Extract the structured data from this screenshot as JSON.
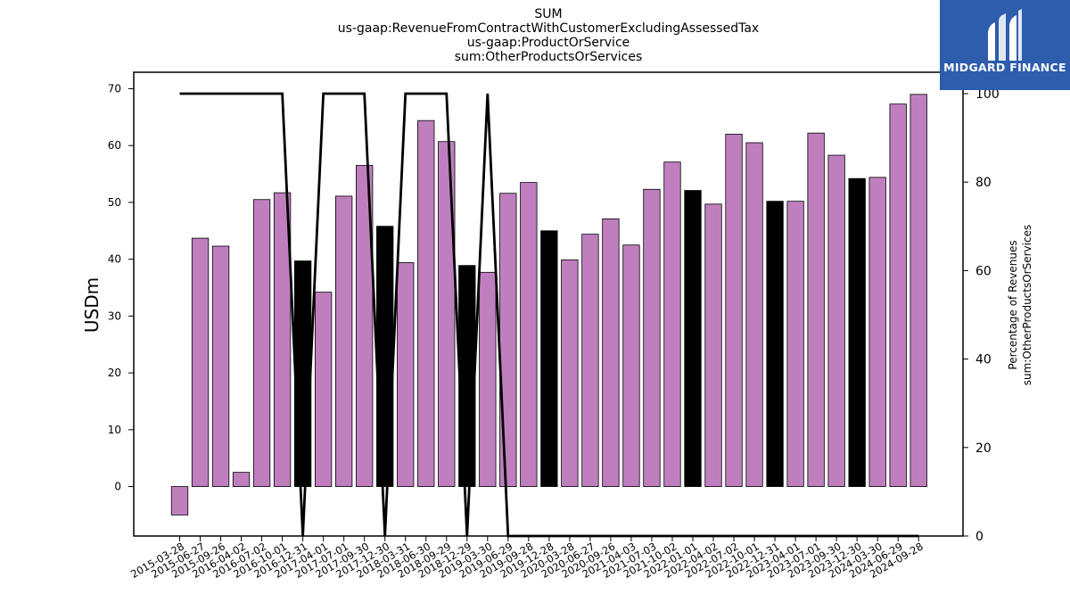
{
  "title_lines": [
    "SUM",
    "us-gaap:RevenueFromContractWithCustomerExcludingAssessedTax",
    "us-gaap:ProductOrService",
    "sum:OtherProductsOrServices"
  ],
  "logo": {
    "text": "MIDGARD FINANCE",
    "icon": "midgard-logo-icon",
    "background": "#2d5dac"
  },
  "chart_data": {
    "type": "bar",
    "ylabel": "USDm",
    "y2label_lines": [
      "Percentage of Revenues",
      "sum:OtherProductsOrServices"
    ],
    "ylim": [
      -8.7,
      72.9
    ],
    "y2lim": [
      0,
      100
    ],
    "yticks": [
      0,
      10,
      20,
      30,
      40,
      50,
      60,
      70
    ],
    "y2ticks": [
      0,
      20,
      40,
      60,
      80,
      100
    ],
    "colors": {
      "bar": "#bf7fbf",
      "bar_highlight": "#000000",
      "line": "#000000"
    },
    "categories": [
      "2015-03-28",
      "2015-06-27",
      "2015-09-26",
      "2016-04-02",
      "2016-07-02",
      "2016-10-01",
      "2016-12-31",
      "2017-04-01",
      "2017-07-01",
      "2017-09-30",
      "2017-12-30",
      "2018-03-31",
      "2018-06-30",
      "2018-09-29",
      "2018-12-29",
      "2019-03-30",
      "2019-06-29",
      "2019-09-28",
      "2019-12-28",
      "2020-03-28",
      "2020-06-27",
      "2020-09-26",
      "2021-04-03",
      "2021-07-03",
      "2021-10-02",
      "2022-01-01",
      "2022-04-02",
      "2022-07-02",
      "2022-10-01",
      "2022-12-31",
      "2023-04-01",
      "2023-07-01",
      "2023-09-30",
      "2023-12-30",
      "2024-03-30",
      "2024-06-29",
      "2024-09-28"
    ],
    "series": [
      {
        "type": "bar",
        "values": [
          -5.0,
          43.7,
          42.3,
          2.5,
          50.5,
          51.7,
          39.7,
          34.2,
          51.1,
          56.5,
          45.8,
          39.4,
          64.4,
          60.7,
          38.9,
          37.7,
          51.6,
          53.5,
          45.0,
          39.9,
          44.4,
          47.1,
          42.5,
          52.3,
          57.1,
          52.1,
          49.7,
          62.0,
          60.5,
          50.2,
          50.2,
          62.2,
          58.3,
          54.2,
          54.4,
          67.3,
          69.0
        ],
        "highlight": [
          false,
          false,
          false,
          false,
          false,
          false,
          true,
          false,
          false,
          false,
          true,
          false,
          false,
          false,
          true,
          false,
          false,
          false,
          true,
          false,
          false,
          false,
          false,
          false,
          false,
          true,
          false,
          false,
          false,
          true,
          false,
          false,
          false,
          true,
          false,
          false,
          false
        ]
      },
      {
        "type": "line",
        "axis": "right",
        "values": [
          100,
          100,
          100,
          100,
          100,
          100,
          0,
          100,
          100,
          100,
          0,
          100,
          100,
          100,
          0,
          100,
          0,
          0,
          0,
          0,
          0,
          0,
          0,
          0,
          0,
          0,
          0,
          0,
          0,
          0,
          0,
          0,
          0,
          0,
          0,
          0,
          0
        ]
      }
    ]
  }
}
